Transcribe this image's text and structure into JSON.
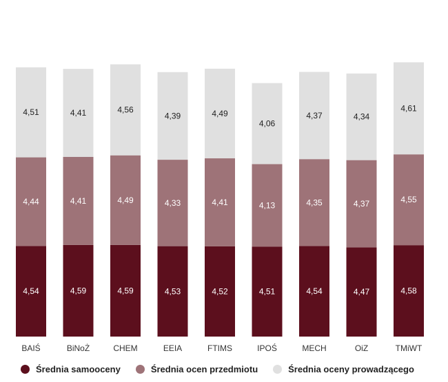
{
  "chart_data": {
    "type": "bar",
    "stacked": true,
    "categories": [
      "BAIŚ",
      "BiNoŻ",
      "CHEM",
      "EEIA",
      "FTIMS",
      "IPOŚ",
      "MECH",
      "OiZ",
      "TMiWT"
    ],
    "series": [
      {
        "name": "Średnia samooceny",
        "color": "#5c0f1d",
        "label_color": "#ffffff",
        "values": [
          4.54,
          4.59,
          4.59,
          4.53,
          4.52,
          4.51,
          4.54,
          4.47,
          4.58
        ],
        "labels": [
          "4,54",
          "4,59",
          "4,59",
          "4,53",
          "4,52",
          "4,51",
          "4,54",
          "4,47",
          "4,58"
        ]
      },
      {
        "name": "Średnia ocen przedmiotu",
        "color": "#9e7378",
        "label_color": "#ffffff",
        "values": [
          4.44,
          4.41,
          4.49,
          4.33,
          4.41,
          4.13,
          4.35,
          4.37,
          4.55
        ],
        "labels": [
          "4,44",
          "4,41",
          "4,49",
          "4,33",
          "4,41",
          "4,13",
          "4,35",
          "4,37",
          "4,55"
        ]
      },
      {
        "name": "Średnia oceny prowadzącego",
        "color": "#e0e0e0",
        "label_color": "#222222",
        "values": [
          4.51,
          4.41,
          4.56,
          4.39,
          4.49,
          4.06,
          4.37,
          4.34,
          4.61
        ],
        "labels": [
          "4,51",
          "4,41",
          "4,56",
          "4,39",
          "4,49",
          "4,06",
          "4,37",
          "4,34",
          "4,61"
        ]
      }
    ],
    "title": "",
    "xlabel": "",
    "ylabel": "",
    "grid": false,
    "legend": "bottom"
  }
}
